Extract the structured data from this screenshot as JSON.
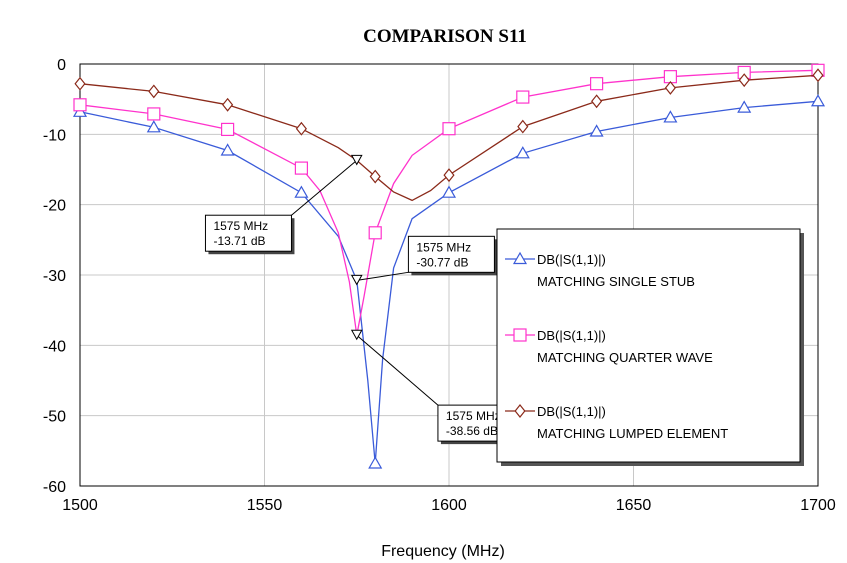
{
  "chart_data": {
    "type": "line",
    "title": "COMPARISON S11",
    "xlabel": "Frequency (MHz)",
    "ylabel": "",
    "xlim": [
      1500,
      1700
    ],
    "ylim": [
      -60,
      0
    ],
    "xticks": [
      1500,
      1550,
      1600,
      1650,
      1700
    ],
    "yticks": [
      0,
      -10,
      -20,
      -30,
      -40,
      -50,
      -60
    ],
    "grid": true,
    "legend_position": "right",
    "series": [
      {
        "name": "DB(|S(1,1)|)",
        "name2": "MATCHING SINGLE STUB",
        "color": "#3a5bd9",
        "marker": "triangle",
        "x": [
          1500,
          1520,
          1540,
          1560,
          1570,
          1575,
          1578,
          1580,
          1582,
          1585,
          1590,
          1600,
          1620,
          1640,
          1660,
          1680,
          1700
        ],
        "y": [
          -6.8,
          -9.0,
          -12.3,
          -18.3,
          -24.5,
          -30.77,
          -45.0,
          -56.8,
          -42.0,
          -29.0,
          -22.0,
          -18.3,
          -12.7,
          -9.6,
          -7.6,
          -6.2,
          -5.3
        ],
        "marker_x": [
          1500,
          1520,
          1540,
          1560,
          1580,
          1600,
          1620,
          1640,
          1660,
          1680,
          1700
        ],
        "marker_y": [
          -6.8,
          -9.0,
          -12.3,
          -18.3,
          -56.8,
          -18.3,
          -12.7,
          -9.6,
          -7.6,
          -6.2,
          -5.3
        ]
      },
      {
        "name": "DB(|S(1,1)|)",
        "name2": "MATCHING QUARTER WAVE",
        "color": "#ff33cc",
        "marker": "square",
        "x": [
          1500,
          1520,
          1540,
          1560,
          1565,
          1570,
          1573,
          1575,
          1577,
          1580,
          1585,
          1590,
          1600,
          1620,
          1640,
          1660,
          1680,
          1700
        ],
        "y": [
          -5.8,
          -7.1,
          -9.3,
          -14.8,
          -18.0,
          -24.0,
          -31.0,
          -38.56,
          -33.0,
          -24.0,
          -17.0,
          -13.0,
          -9.2,
          -4.7,
          -2.8,
          -1.8,
          -1.2,
          -0.9
        ],
        "marker_x": [
          1500,
          1520,
          1540,
          1560,
          1580,
          1600,
          1620,
          1640,
          1660,
          1680,
          1700
        ],
        "marker_y": [
          -5.8,
          -7.1,
          -9.3,
          -14.8,
          -24.0,
          -9.2,
          -4.7,
          -2.8,
          -1.8,
          -1.2,
          -0.9
        ]
      },
      {
        "name": "DB(|S(1,1)|)",
        "name2": "MATCHING LUMPED ELEMENT",
        "color": "#8b2a1a",
        "marker": "diamond",
        "x": [
          1500,
          1520,
          1540,
          1560,
          1570,
          1575,
          1580,
          1585,
          1590,
          1595,
          1600,
          1620,
          1640,
          1660,
          1680,
          1700
        ],
        "y": [
          -2.8,
          -3.9,
          -5.8,
          -9.2,
          -11.9,
          -13.71,
          -16.0,
          -18.2,
          -19.4,
          -18.0,
          -15.8,
          -8.9,
          -5.3,
          -3.4,
          -2.3,
          -1.6
        ],
        "marker_x": [
          1500,
          1520,
          1540,
          1560,
          1580,
          1600,
          1620,
          1640,
          1660,
          1680,
          1700
        ],
        "marker_y": [
          -2.8,
          -3.9,
          -5.8,
          -9.2,
          -16.0,
          -15.8,
          -8.9,
          -5.3,
          -3.4,
          -2.3,
          -1.6
        ]
      }
    ],
    "annotations": [
      {
        "x": 1575,
        "y": -13.71,
        "line1": "1575 MHz",
        "line2": "-13.71 dB",
        "box_x": 1534,
        "box_y": -21.5,
        "series": 2
      },
      {
        "x": 1575,
        "y": -30.77,
        "line1": "1575 MHz",
        "line2": "-30.77 dB",
        "box_x": 1589,
        "box_y": -24.5,
        "series": 0
      },
      {
        "x": 1575,
        "y": -38.56,
        "line1": "1575 MHz",
        "line2": "-38.56 dB",
        "box_x": 1597,
        "box_y": -48.5,
        "series": 1
      }
    ]
  }
}
